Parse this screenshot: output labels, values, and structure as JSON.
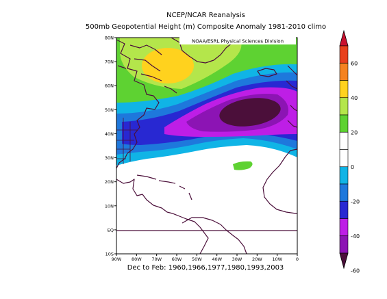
{
  "header": {
    "title": "NCEP/NCAR Reanalysis",
    "subtitle": "500mb Geopotential Height (m) Composite Anomaly 1981-2010 climo"
  },
  "attribution": "NOAA/ESRL Physical Sciences Division",
  "caption": "Dec to Feb: 1960,1966,1977,1980,1993,2003",
  "map": {
    "projection": "cylindrical",
    "lon_range": [
      -90,
      0
    ],
    "lat_range": [
      -10,
      80
    ],
    "lat_ticks": [
      "80N",
      "70N",
      "60N",
      "50N",
      "40N",
      "30N",
      "20N",
      "10N",
      "EQ",
      "10S"
    ],
    "lon_ticks": [
      "90W",
      "80W",
      "70W",
      "60W",
      "50W",
      "40W",
      "30W",
      "20W",
      "10W",
      "0"
    ],
    "colors": {
      "land_outline": "#4b0f3a",
      "equator_line": "#4b0f3a"
    },
    "anomaly_regions": [
      {
        "name": "greenland-positive",
        "approx_center": [
          -55,
          72
        ],
        "peak_band": "40 to 50"
      },
      {
        "name": "north-atlantic-negative",
        "approx_center": [
          -30,
          50
        ],
        "peak_band": "-60 to -50"
      },
      {
        "name": "tropical-atlantic-small-positive",
        "approx_center": [
          -38,
          30
        ],
        "peak_band": "10 to 20"
      }
    ]
  },
  "colorbar": {
    "labels": [
      "60",
      "40",
      "20",
      "0",
      "-20",
      "-40",
      "-60"
    ],
    "bands": [
      {
        "range": "> 60",
        "color": "#c8102e"
      },
      {
        "range": "50 to 60",
        "color": "#e8401c"
      },
      {
        "range": "40 to 50",
        "color": "#f5821f"
      },
      {
        "range": "30 to 40",
        "color": "#ffd21e"
      },
      {
        "range": "20 to 30",
        "color": "#b4e64b"
      },
      {
        "range": "10 to 20",
        "color": "#5ed232"
      },
      {
        "range": "0 to 10",
        "color": "#ffffff"
      },
      {
        "range": "-10 to 0",
        "color": "#ffffff"
      },
      {
        "range": "-20 to -10",
        "color": "#10b4e6"
      },
      {
        "range": "-30 to -20",
        "color": "#1e78dc"
      },
      {
        "range": "-40 to -30",
        "color": "#2828d2"
      },
      {
        "range": "-50 to -40",
        "color": "#be1ee6"
      },
      {
        "range": "-60 to -50",
        "color": "#8c14b4"
      },
      {
        "range": "< -60",
        "color": "#4b0f3a"
      }
    ]
  }
}
